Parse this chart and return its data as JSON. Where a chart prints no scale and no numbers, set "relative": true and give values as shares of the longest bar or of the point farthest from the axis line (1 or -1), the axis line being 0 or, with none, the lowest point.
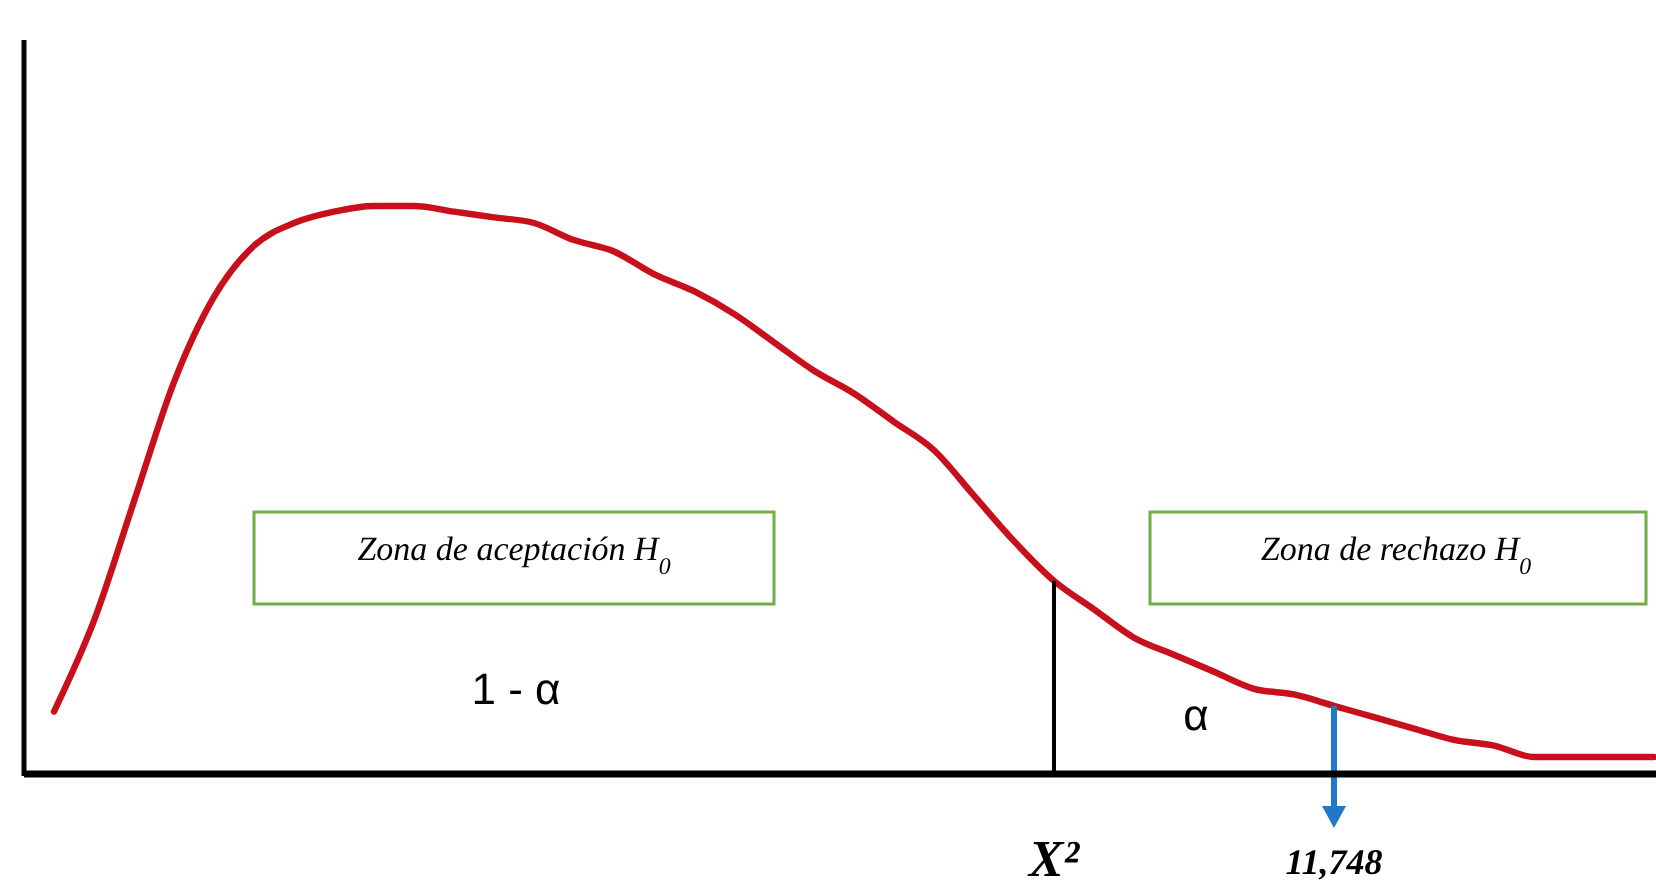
{
  "chart_data": {
    "type": "line",
    "relative": true,
    "tick_labels": "x",
    "color": "#c8101c",
    "categories": [
      null,
      null,
      null,
      null,
      null,
      null,
      null,
      null,
      null,
      null,
      null,
      null,
      null,
      null,
      null,
      null,
      null,
      null,
      null,
      null,
      null,
      null,
      null,
      null,
      null,
      "X²",
      null,
      null,
      null,
      null,
      null,
      null,
      "11,748",
      null,
      null,
      null,
      null,
      null,
      null,
      null,
      null
    ],
    "values": [
      0.11,
      0.27,
      0.48,
      0.69,
      0.84,
      0.93,
      0.97,
      0.99,
      1.0,
      1.0,
      0.99,
      0.98,
      0.97,
      0.94,
      0.92,
      0.88,
      0.85,
      0.81,
      0.76,
      0.71,
      0.67,
      0.62,
      0.57,
      0.49,
      0.41,
      0.34,
      0.29,
      0.24,
      0.21,
      0.18,
      0.15,
      0.14,
      0.12,
      0.1,
      0.08,
      0.06,
      0.05,
      0.03,
      0.03,
      0.03,
      0.03
    ],
    "ref_lines": [
      {
        "axis": "x",
        "value": "X²",
        "color": "#000000"
      },
      {
        "axis": "x",
        "value": "11,748",
        "color": "#1f78c8"
      }
    ],
    "annotations": [
      "Zona de aceptación H$_{0}$",
      "Zona de rechazo H$_{0}$",
      "1 - α",
      "α"
    ]
  }
}
